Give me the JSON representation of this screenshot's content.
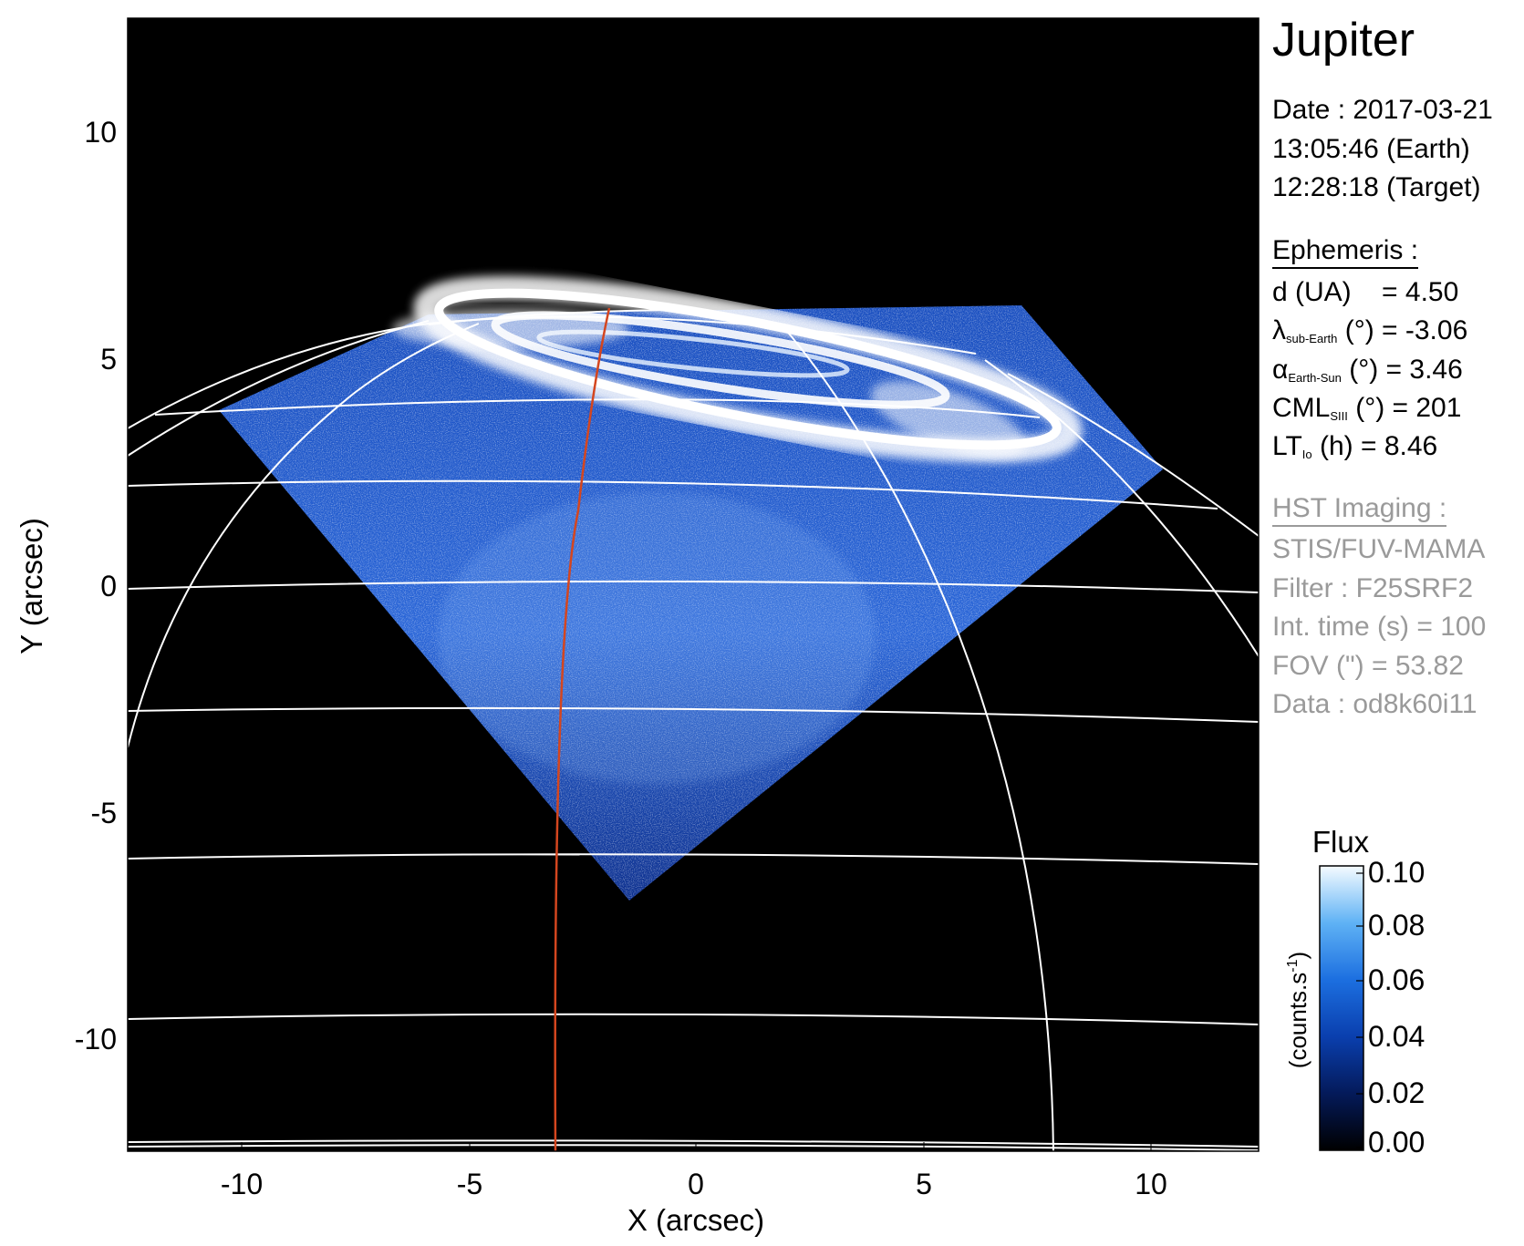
{
  "image": {
    "subject": "Jupiter",
    "x_axis": {
      "label": "X (arcsec)",
      "ticks": [
        "-10",
        "-5",
        "0",
        "5",
        "10"
      ],
      "range": [
        -12.5,
        12.5
      ]
    },
    "y_axis": {
      "label": "Y (arcsec)",
      "ticks": [
        "10",
        "5",
        "0",
        "-5",
        "-10"
      ],
      "range": [
        -12.5,
        12.5
      ]
    },
    "colorbar": {
      "title": "Flux",
      "unit_label": "(counts.s-1)",
      "ticks": [
        "0.10",
        "0.08",
        "0.06",
        "0.04",
        "0.02",
        "0.00"
      ],
      "range": [
        0.0,
        0.1
      ]
    },
    "colors": {
      "background": "#000000",
      "grid": "#ffffff",
      "meridian": "#d4461f",
      "aurora": "#ffffff",
      "disk_low": "#0a2a8a",
      "disk_high": "#5aa8ff"
    }
  },
  "info": {
    "title": "Jupiter",
    "date_line": "Date : 2017-03-21",
    "time_earth": "13:05:46 (Earth)",
    "time_target": "12:28:18 (Target)",
    "ephemeris_heading": "Ephemeris :",
    "ephem": {
      "d_label": "d (UA)",
      "d_value": "= 4.50",
      "lat_symbol": "λ",
      "lat_sub": "sub-Earth",
      "lat_rest": "(°) = -3.06",
      "phase_symbol": "α",
      "phase_sub": "Earth-Sun",
      "phase_rest": "(°) = 3.46",
      "cml_symbol": "CML",
      "cml_sub": "SIII",
      "cml_rest": "(°) = 201",
      "lt_symbol": "LT",
      "lt_sub": "Io",
      "lt_rest": "(h) = 8.46"
    },
    "hst_heading": "HST Imaging :",
    "instrument": "STIS/FUV-MAMA",
    "filter": "Filter : F25SRF2",
    "int_time": "Int. time (s) = 100",
    "fov": "FOV (\") = 53.82",
    "data_id": "Data : od8k60i11"
  }
}
